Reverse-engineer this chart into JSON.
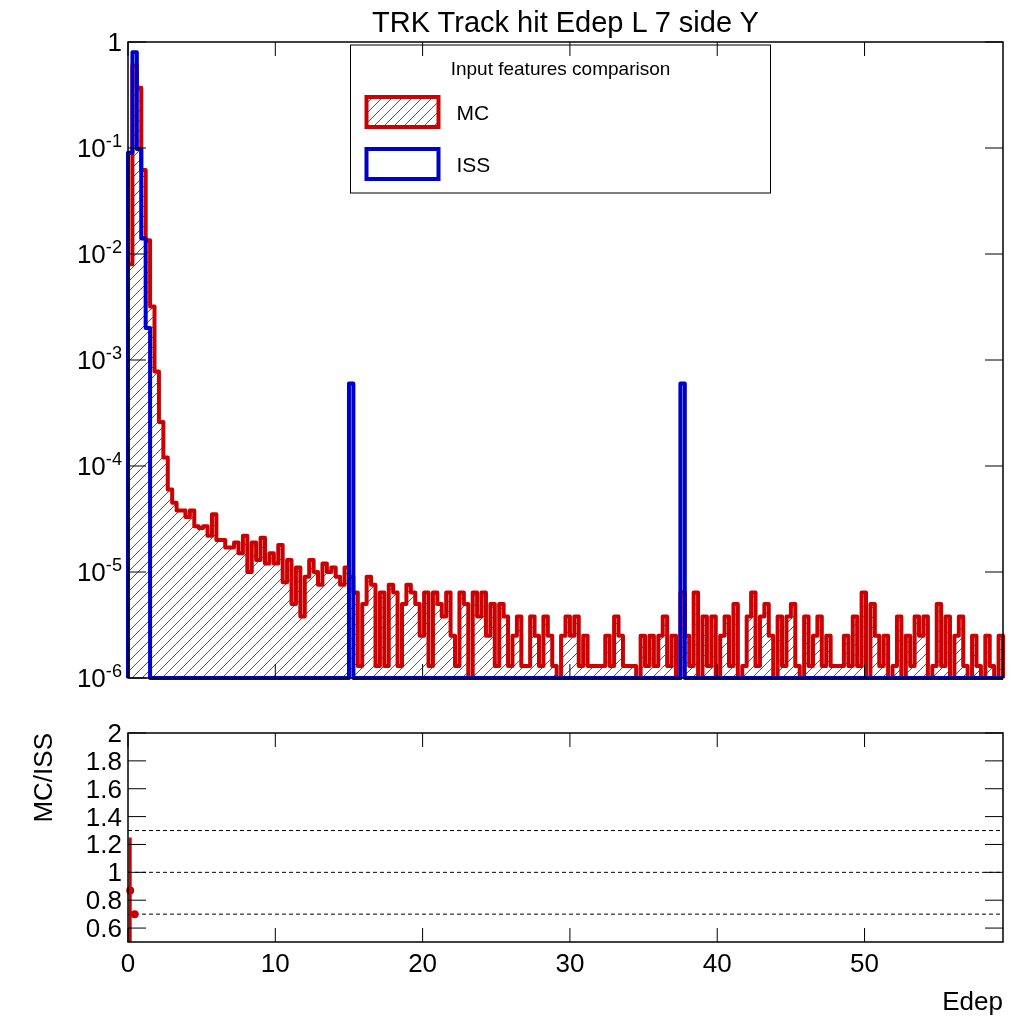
{
  "chart_data": [
    {
      "type": "histogram",
      "title": "TRK Track hit Edep L 7 side Y",
      "legend_title": "Input features comparison",
      "legend": "top",
      "log": "y",
      "tick_labels": "y",
      "bins": [
        0,
        0.3,
        0.6,
        0.9,
        1.2,
        1.5,
        1.8,
        2.1,
        2.4,
        2.7,
        3,
        3.3,
        3.6,
        3.9,
        4.2,
        4.5,
        4.8,
        5.1,
        5.4,
        5.7,
        6,
        6.3,
        6.6,
        6.9,
        7.2,
        7.5,
        7.8,
        8.1,
        8.4,
        8.7,
        9,
        9.3,
        9.6,
        9.9,
        10.2,
        10.5,
        10.8,
        11.1,
        11.4,
        11.7,
        12,
        12.3,
        12.6,
        12.9,
        13.2,
        13.5,
        13.8,
        14.1,
        14.4,
        14.7,
        15,
        15.3,
        15.6,
        15.9,
        16.2,
        16.5,
        16.8,
        17.1,
        17.4,
        17.7,
        18,
        18.3,
        18.6,
        18.9,
        19.2,
        19.5,
        19.8,
        20.1,
        20.4,
        20.7,
        21,
        21.3,
        21.6,
        21.9,
        22.2,
        22.5,
        22.8,
        23.1,
        23.4,
        23.7,
        24,
        24.3,
        24.6,
        24.9,
        25.2,
        25.5,
        25.8,
        26.1,
        26.4,
        26.7,
        27,
        27.3,
        27.6,
        27.9,
        28.2,
        28.5,
        28.8,
        29.1,
        29.4,
        29.7,
        30,
        30.3,
        30.6,
        30.9,
        31.2,
        31.5,
        31.8,
        32.1,
        32.4,
        32.7,
        33,
        33.3,
        33.6,
        33.9,
        34.2,
        34.5,
        34.8,
        35.1,
        35.4,
        35.7,
        36,
        36.3,
        36.6,
        36.9,
        37.2,
        37.5,
        37.8,
        38.1,
        38.4,
        38.7,
        39,
        39.3,
        39.6,
        39.9,
        40.2,
        40.5,
        40.8,
        41.1,
        41.4,
        41.7,
        42,
        42.3,
        42.6,
        42.9,
        43.2,
        43.5,
        43.8,
        44.1,
        44.4,
        44.7,
        45,
        45.3,
        45.6,
        45.9,
        46.2,
        46.5,
        46.8,
        47.1,
        47.4,
        47.7,
        48,
        48.3,
        48.6,
        48.9,
        49.2,
        49.5,
        49.8,
        50.1,
        50.4,
        50.7,
        51,
        51.3,
        51.6,
        51.9,
        52.2,
        52.5,
        52.8,
        53.1,
        53.4,
        53.7,
        54,
        54.3,
        54.6,
        54.9,
        55.2,
        55.5,
        55.8,
        56.1,
        56.4,
        56.7,
        57,
        57.3,
        57.6,
        57.9,
        58.2,
        58.5,
        58.8,
        59.1,
        59.4
      ],
      "series": [
        {
          "name": "MC",
          "color": "#cc0000",
          "values": [
            0.008,
            0.6,
            0.37,
            0.062,
            0.0135,
            0.0032,
            0.00078,
            0.00026,
            0.00012,
            6e-05,
            4.5e-05,
            3.8e-05,
            3.8e-05,
            3.3e-05,
            3.8e-05,
            2.7e-05,
            2.6e-05,
            2.7e-05,
            2.2e-05,
            3.5e-05,
            2e-05,
            2e-05,
            1.7e-05,
            1.7e-05,
            1.9e-05,
            1.5e-05,
            2.2e-05,
            1e-05,
            1.9e-05,
            1.3e-05,
            2.1e-05,
            1.2e-05,
            1.5e-05,
            1.2e-05,
            1.8e-05,
            8e-06,
            1.3e-05,
            5e-06,
            1.1e-05,
            3.8e-06,
            9e-06,
            1.3e-05,
            1e-05,
            7.6e-06,
            1.2e-05,
            1e-05,
            1.1e-05,
            9e-06,
            7.6e-06,
            1.1e-05,
            9e-06,
            6.4e-06,
            1.3e-06,
            5e-06,
            9e-06,
            7.6e-06,
            1.3e-06,
            6.4e-06,
            1.3e-06,
            7.6e-06,
            6.4e-06,
            1.3e-06,
            5e-06,
            7.6e-06,
            6.4e-06,
            5e-06,
            2.5e-06,
            6.4e-06,
            1.3e-06,
            6.4e-06,
            5e-06,
            3.8e-06,
            6.4e-06,
            2.5e-06,
            1.3e-06,
            6.4e-06,
            5e-06,
            null,
            6.4e-06,
            3.8e-06,
            6.4e-06,
            2.5e-06,
            5e-06,
            1.3e-06,
            5e-06,
            3.8e-06,
            1.3e-06,
            2.5e-06,
            3.8e-06,
            1.3e-06,
            1.3e-06,
            3.8e-06,
            2.5e-06,
            1.3e-06,
            3.8e-06,
            2.5e-06,
            1.3e-06,
            null,
            2.5e-06,
            3.8e-06,
            2.5e-06,
            3.8e-06,
            1.3e-06,
            2.5e-06,
            1.3e-06,
            1.3e-06,
            1.3e-06,
            1.3e-06,
            2.5e-06,
            1.3e-06,
            3.8e-06,
            2.5e-06,
            1.3e-06,
            1.3e-06,
            1.3e-06,
            null,
            2.5e-06,
            1.3e-06,
            2.5e-06,
            1.3e-06,
            2.5e-06,
            3.8e-06,
            1.3e-06,
            2.5e-06,
            null,
            6.4e-06,
            2.5e-06,
            1.3e-06,
            6.4e-06,
            null,
            3.8e-06,
            1.3e-06,
            3.8e-06,
            null,
            2.5e-06,
            3.8e-06,
            1.3e-06,
            5e-06,
            null,
            1.3e-06,
            3.8e-06,
            6.4e-06,
            1.3e-06,
            3.8e-06,
            5e-06,
            2.5e-06,
            null,
            3.8e-06,
            1.3e-06,
            3.8e-06,
            5e-06,
            1.3e-06,
            null,
            3.8e-06,
            1.3e-06,
            2.5e-06,
            3.8e-06,
            1.3e-06,
            2.5e-06,
            1.3e-06,
            1.3e-06,
            1.3e-06,
            2.5e-06,
            1.3e-06,
            3.8e-06,
            1.3e-06,
            6.4e-06,
            null,
            5e-06,
            2.5e-06,
            1.3e-06,
            2.5e-06,
            null,
            1.3e-06,
            3.8e-06,
            null,
            2.5e-06,
            1.3e-06,
            3.8e-06,
            2.5e-06,
            3.8e-06,
            null,
            1.3e-06,
            5e-06,
            1.3e-06,
            3.8e-06,
            null,
            2.5e-06,
            3.8e-06,
            1.3e-06,
            null,
            2.5e-06,
            1.3e-06,
            null,
            2.5e-06,
            1.3e-06,
            null,
            2.5e-06
          ]
        },
        {
          "name": "ISS",
          "color": "#0000cc",
          "values": [
            0.09,
            0.8,
            0.098,
            0.014,
            0.002,
            null,
            null,
            null,
            null,
            null,
            null,
            null,
            null,
            null,
            null,
            null,
            null,
            null,
            null,
            null,
            null,
            null,
            null,
            null,
            null,
            null,
            null,
            null,
            null,
            null,
            null,
            null,
            null,
            null,
            null,
            null,
            null,
            null,
            null,
            null,
            null,
            null,
            null,
            null,
            null,
            null,
            null,
            null,
            null,
            null,
            0.0006,
            null,
            null,
            null,
            null,
            null,
            null,
            null,
            null,
            null,
            null,
            null,
            null,
            null,
            null,
            null,
            null,
            null,
            null,
            null,
            null,
            null,
            null,
            null,
            null,
            null,
            null,
            null,
            null,
            null,
            null,
            null,
            null,
            null,
            null,
            null,
            null,
            null,
            null,
            null,
            null,
            null,
            null,
            null,
            null,
            null,
            null,
            null,
            null,
            null,
            null,
            null,
            null,
            null,
            null,
            null,
            null,
            null,
            null,
            null,
            null,
            null,
            null,
            null,
            null,
            null,
            null,
            null,
            null,
            null,
            null,
            null,
            null,
            null,
            null,
            0.0006,
            null,
            null,
            null,
            null,
            null,
            null,
            null,
            null,
            null,
            null,
            null,
            null,
            null,
            null,
            null,
            null,
            null,
            null,
            null,
            null,
            null,
            null,
            null,
            null,
            null,
            null,
            null,
            null,
            null,
            null,
            null,
            null,
            null,
            null,
            null,
            null,
            null,
            null,
            null,
            null,
            null,
            null,
            null,
            null,
            null,
            null,
            null,
            null,
            null,
            null,
            null,
            null,
            null,
            null,
            null,
            null,
            null,
            null,
            null,
            null,
            null,
            null,
            null,
            null,
            null,
            null,
            null,
            null,
            null,
            null,
            null,
            null
          ]
        }
      ],
      "xlim": [
        0,
        59.4
      ],
      "xticks": [
        0,
        10,
        20,
        30,
        40,
        50
      ],
      "ylim": [
        1e-06,
        1
      ],
      "yticks": [
        {
          "value": 1e-06,
          "label": "10$^{-6}$"
        },
        {
          "value": 1e-05,
          "label": "10$^{-5}$"
        },
        {
          "value": 0.0001,
          "label": "10$^{-4}$"
        },
        {
          "value": 0.001,
          "label": "10$^{-3}$"
        },
        {
          "value": 0.01,
          "label": "10$^{-2}$"
        },
        {
          "value": 0.1,
          "label": "10$^{-1}$"
        },
        1
      ]
    },
    {
      "type": "scatter",
      "xlabel": "Edep",
      "ylabel": "MC/ISS",
      "marker": "circle",
      "series": [
        {
          "color": "#cc0000",
          "x": [
            0.15,
            0.45
          ],
          "values": [
            0.87,
            0.7
          ],
          "errors": [
            [
              0.5,
              1.25
            ],
            null
          ]
        }
      ],
      "xlim": [
        0,
        59.4
      ],
      "xticks": [
        0,
        10,
        20,
        30,
        40,
        50
      ],
      "ylim": [
        0.5,
        2
      ],
      "yticks": [
        0.6,
        0.8,
        1,
        1.2,
        1.4,
        1.6,
        1.8,
        2
      ],
      "ref_lines": [
        {
          "axis": "y",
          "value": 0.7,
          "line_style": "dashed"
        },
        {
          "axis": "y",
          "value": 1,
          "line_style": "dashed"
        },
        {
          "axis": "y",
          "value": 1.3,
          "line_style": "dashed"
        }
      ]
    }
  ]
}
